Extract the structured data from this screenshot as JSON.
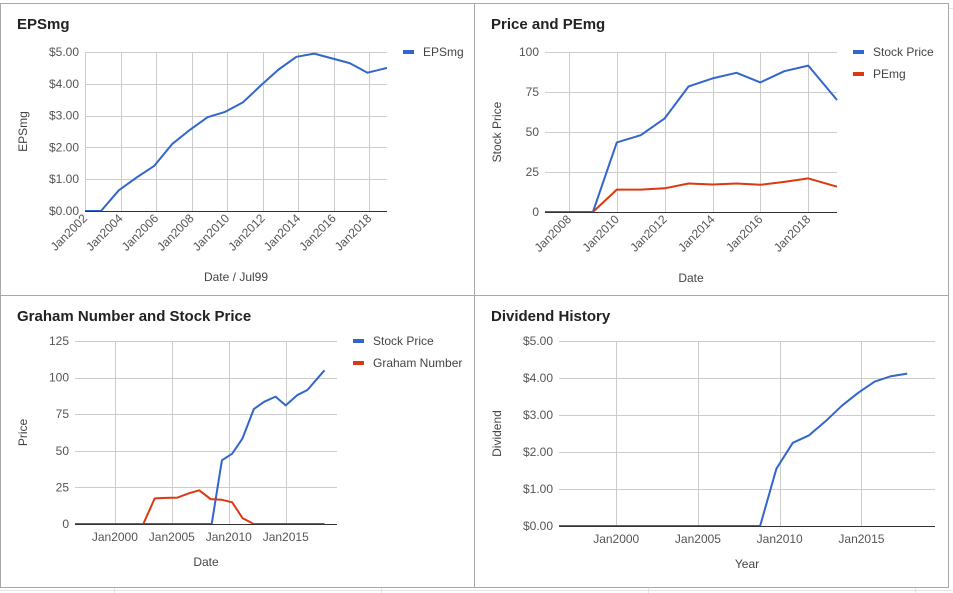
{
  "colors": {
    "blue": "#3366cc",
    "red": "#dc3912",
    "grid": "#cccccc",
    "axis": "#333333",
    "text": "#444444",
    "tick": "#555555"
  },
  "chart_data": [
    {
      "id": "epsmg",
      "type": "line",
      "title": "EPSmg",
      "xlabel": "Date / Jul99",
      "ylabel": "EPSmg",
      "y_format": "dollar",
      "ylim": [
        0,
        5
      ],
      "y_ticks": [
        0,
        1,
        2,
        3,
        4,
        5
      ],
      "xlim": [
        2002.0,
        2019.0
      ],
      "x_ticks": [
        2002,
        2004,
        2006,
        2008,
        2010,
        2012,
        2014,
        2016,
        2018
      ],
      "x_tick_labels": [
        "Jan2002",
        "Jan2004",
        "Jan2006",
        "Jan2008",
        "Jan2010",
        "Jan2012",
        "Jan2014",
        "Jan2016",
        "Jan2018"
      ],
      "x_label_rotated": true,
      "legend_position": "right",
      "series": [
        {
          "name": "EPSmg",
          "color": "#3366cc",
          "x": [
            2002.0,
            2002.9,
            2003.9,
            2004.9,
            2005.9,
            2006.9,
            2007.9,
            2008.9,
            2009.9,
            2010.9,
            2011.9,
            2012.9,
            2013.9,
            2014.9,
            2015.9,
            2016.9,
            2017.9,
            2019.0
          ],
          "y": [
            0.0,
            0.0,
            0.65,
            1.05,
            1.42,
            2.1,
            2.55,
            2.95,
            3.12,
            3.42,
            3.95,
            4.45,
            4.85,
            4.95,
            4.8,
            4.65,
            4.35,
            4.5
          ]
        }
      ]
    },
    {
      "id": "price-pe",
      "type": "line",
      "title": "Price and PEmg",
      "xlabel": "Date",
      "ylabel": "Stock Price",
      "y_format": "plain",
      "ylim": [
        0,
        100
      ],
      "y_ticks": [
        0,
        25,
        50,
        75,
        100
      ],
      "xlim": [
        2007.0,
        2019.2
      ],
      "x_ticks": [
        2008,
        2010,
        2012,
        2014,
        2016,
        2018
      ],
      "x_tick_labels": [
        "Jan2008",
        "Jan2010",
        "Jan2012",
        "Jan2014",
        "Jan2016",
        "Jan2018"
      ],
      "x_label_rotated": true,
      "legend_position": "right",
      "series": [
        {
          "name": "Stock Price",
          "color": "#3366cc",
          "x": [
            2007.0,
            2008.0,
            2009.0,
            2010.0,
            2011.0,
            2012.0,
            2013.0,
            2014.0,
            2015.0,
            2016.0,
            2017.0,
            2018.0,
            2019.2
          ],
          "y": [
            0,
            0,
            0,
            43.5,
            48,
            58.5,
            78.5,
            83.5,
            87,
            81,
            88,
            91.5,
            70
          ]
        },
        {
          "name": "PEmg",
          "color": "#dc3912",
          "x": [
            2007.0,
            2008.0,
            2009.0,
            2010.0,
            2011.0,
            2012.0,
            2013.0,
            2014.0,
            2015.0,
            2016.0,
            2017.0,
            2018.0,
            2019.2
          ],
          "y": [
            0,
            0,
            0,
            14,
            14,
            14.8,
            17.8,
            17.2,
            17.8,
            17,
            18.8,
            21,
            15.8
          ]
        }
      ]
    },
    {
      "id": "graham",
      "type": "line",
      "title": "Graham Number and Stock Price",
      "xlabel": "Date",
      "ylabel": "Price",
      "y_format": "plain",
      "ylim": [
        0,
        125
      ],
      "y_ticks": [
        0,
        25,
        50,
        75,
        100,
        125
      ],
      "xlim": [
        1996.5,
        2019.5
      ],
      "x_ticks": [
        2000,
        2005,
        2010,
        2015
      ],
      "x_tick_labels": [
        "Jan2000",
        "Jan2005",
        "Jan2010",
        "Jan2015"
      ],
      "x_label_rotated": false,
      "legend_position": "right",
      "series": [
        {
          "name": "Stock Price",
          "color": "#3366cc",
          "x": [
            1996.5,
            2008.5,
            2009.4,
            2010.3,
            2011.2,
            2012.2,
            2013.1,
            2014.1,
            2015.0,
            2016.0,
            2016.9,
            2018.4
          ],
          "y": [
            0,
            0,
            43.5,
            48,
            58.5,
            78.5,
            83.5,
            87,
            81,
            88,
            91.5,
            105
          ]
        },
        {
          "name": "Graham Number",
          "color": "#dc3912",
          "x": [
            1996.5,
            2002.5,
            2003.5,
            2004.5,
            2005.5,
            2006.5,
            2007.4,
            2008.4,
            2009.4,
            2010.3,
            2011.2,
            2012.2,
            2013.1,
            2018.4
          ],
          "y": [
            0,
            0,
            17.5,
            17.8,
            18,
            21,
            23,
            17,
            16.5,
            14.8,
            4,
            0,
            0,
            0
          ]
        }
      ]
    },
    {
      "id": "dividend",
      "type": "line",
      "title": "Dividend History",
      "xlabel": "Year",
      "ylabel": "Dividend",
      "y_format": "dollar",
      "ylim": [
        0,
        5
      ],
      "y_ticks": [
        0,
        1,
        2,
        3,
        4,
        5
      ],
      "xlim": [
        1996.5,
        2019.5
      ],
      "x_ticks": [
        2000,
        2005,
        2010,
        2015
      ],
      "x_tick_labels": [
        "Jan2000",
        "Jan2005",
        "Jan2010",
        "Jan2015"
      ],
      "x_label_rotated": false,
      "legend_position": "none",
      "series": [
        {
          "name": "",
          "color": "#3366cc",
          "x": [
            1996.5,
            2008.8,
            2009.8,
            2010.8,
            2011.8,
            2012.8,
            2013.8,
            2014.8,
            2015.8,
            2016.8,
            2017.8
          ],
          "y": [
            0,
            0,
            1.55,
            2.25,
            2.45,
            2.83,
            3.25,
            3.6,
            3.9,
            4.05,
            4.12
          ]
        }
      ]
    }
  ]
}
